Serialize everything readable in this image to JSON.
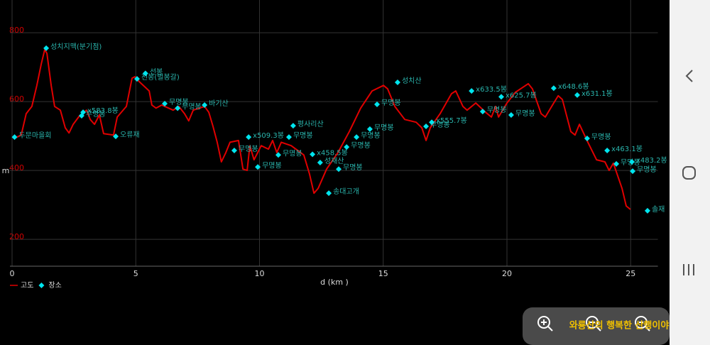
{
  "chart_data": {
    "type": "line",
    "xlabel": "d (km )",
    "ylabel": "m",
    "xlim": [
      0,
      26.1
    ],
    "ylim": [
      122,
      895
    ],
    "xticks": [
      0,
      5,
      10,
      15,
      20,
      25
    ],
    "yticks": [
      200,
      400,
      600,
      800
    ],
    "grid": true,
    "series": [
      {
        "name": "고도",
        "color": "#e00000",
        "x": [
          0.09,
          0.37,
          0.57,
          0.8,
          1.0,
          1.18,
          1.32,
          1.41,
          1.58,
          1.72,
          1.95,
          2.15,
          2.3,
          2.47,
          2.73,
          3.01,
          3.16,
          3.33,
          3.53,
          3.7,
          4.1,
          4.25,
          4.62,
          4.85,
          4.96,
          5.14,
          5.54,
          5.65,
          5.82,
          6.05,
          6.51,
          6.74,
          6.97,
          7.14,
          7.32,
          7.78,
          7.95,
          8.12,
          8.29,
          8.46,
          8.64,
          8.81,
          9.15,
          9.33,
          9.5,
          9.61,
          9.78,
          10.07,
          10.36,
          10.53,
          10.7,
          10.88,
          11.28,
          11.79,
          12.02,
          12.2,
          12.37,
          12.71,
          13.17,
          13.63,
          14.09,
          14.55,
          15.01,
          15.18,
          15.47,
          15.87,
          16.33,
          16.56,
          16.73,
          16.9,
          17.3,
          17.76,
          17.93,
          18.22,
          18.39,
          18.74,
          19.14,
          19.37,
          19.54,
          19.66,
          20.0,
          20.34,
          20.86,
          21.03,
          21.38,
          21.55,
          21.89,
          22.07,
          22.24,
          22.58,
          22.75,
          22.93,
          23.27,
          23.62,
          23.96,
          24.13,
          24.3,
          24.65,
          24.82,
          24.99
        ],
        "values": [
          493,
          503,
          565,
          586,
          647,
          709,
          751,
          740,
          647,
          586,
          575,
          524,
          509,
          534,
          559,
          575,
          548,
          534,
          561,
          507,
          503,
          555,
          586,
          668,
          672,
          658,
          631,
          590,
          581,
          590,
          575,
          586,
          565,
          544,
          575,
          586,
          569,
          528,
          482,
          425,
          452,
          482,
          487,
          404,
          400,
          472,
          431,
          472,
          462,
          487,
          452,
          482,
          472,
          445,
          390,
          334,
          348,
          404,
          452,
          513,
          581,
          631,
          647,
          637,
          586,
          548,
          540,
          524,
          487,
          524,
          565,
          623,
          631,
          586,
          575,
          596,
          569,
          555,
          586,
          555,
          596,
          627,
          652,
          637,
          565,
          555,
          596,
          617,
          606,
          513,
          503,
          534,
          482,
          431,
          425,
          400,
          421,
          348,
          297,
          287
        ]
      },
      {
        "name": "장소",
        "color": "#00e5ee",
        "marker": "diamond",
        "x": [
          0.1,
          1.38,
          2.81,
          2.87,
          4.19,
          5.05,
          5.39,
          6.17,
          6.69,
          7.78,
          8.98,
          9.56,
          9.93,
          10.76,
          11.19,
          11.36,
          12.14,
          12.45,
          12.8,
          13.2,
          13.52,
          13.92,
          14.46,
          14.75,
          15.58,
          16.73,
          16.96,
          18.57,
          19.02,
          19.77,
          20.17,
          21.89,
          22.84,
          23.24,
          24.05,
          24.42,
          25.05,
          25.08,
          25.68
        ],
        "values": [
          497,
          755,
          559,
          569,
          499,
          666,
          682,
          594,
          581,
          590,
          458,
          497,
          410,
          445,
          497,
          530,
          447,
          423,
          334,
          404,
          468,
          497,
          520,
          592,
          656,
          528,
          540,
          631,
          571,
          614,
          561,
          639,
          619,
          493,
          458,
          419,
          425,
          398,
          283
        ],
        "labels": [
          "두문마을회",
          "성치지맥(분기점)",
          "무명봉",
          "x583.8봉",
          "오류재",
          "천봉(벌봉갈)",
          "선봉",
          "무명봉",
          "무명봉",
          "바기산",
          "무명봉",
          "x509.3봉",
          "무명봉",
          "무명봉",
          "무명봉",
          "평사리산",
          "x458.5봉",
          "성재산",
          "송대고개",
          "무명봉",
          "무명봉",
          "무명봉",
          "무명봉",
          "무명봉",
          "성치산",
          "무명봉",
          "x555.7봉",
          "x633.5봉",
          "무명봉",
          "x625.7봉",
          "무명봉",
          "x648.6봉",
          "x631.1봉",
          "무명봉",
          "x463.1봉",
          "무명봉",
          "x483.2봉",
          "무명봉",
          "솔재"
        ]
      }
    ]
  },
  "overlay": {
    "text": "와룡산의 행복한 산행이야기"
  }
}
